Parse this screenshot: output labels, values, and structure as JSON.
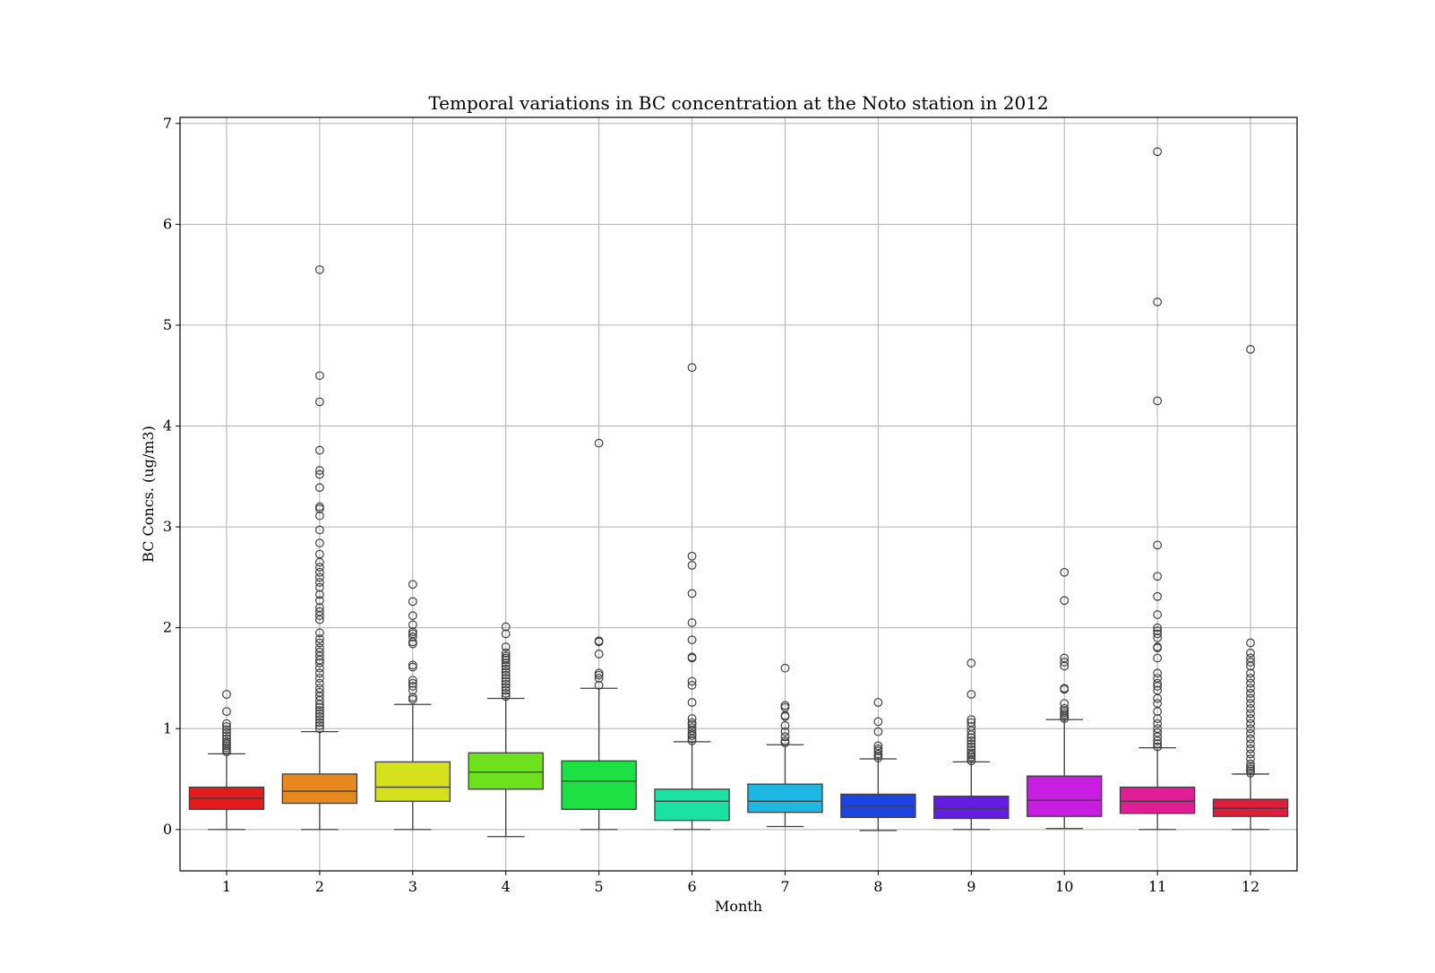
{
  "chart_data": {
    "type": "box",
    "title": "Temporal variations in BC concentration at the Noto station in 2012",
    "xlabel": "Month",
    "ylabel": "BC Concs. (ug/m3)",
    "ylim": [
      -0.41,
      7.06
    ],
    "yticks": [
      0,
      1,
      2,
      3,
      4,
      5,
      6,
      7
    ],
    "grid": true,
    "categories": [
      "1",
      "2",
      "3",
      "4",
      "5",
      "6",
      "7",
      "8",
      "9",
      "10",
      "11",
      "12"
    ],
    "colors": [
      "#e41a1c",
      "#e6891f",
      "#d4e11d",
      "#6ee11d",
      "#1de144",
      "#1de1a0",
      "#1db7e1",
      "#1d44e1",
      "#621de1",
      "#c71de1",
      "#e11d96",
      "#e11d3b"
    ],
    "boxes": [
      {
        "whisker_low": 0.0,
        "q1": 0.2,
        "median": 0.31,
        "q3": 0.42,
        "whisker_high": 0.75,
        "outliers": [
          0.77,
          0.79,
          0.81,
          0.83,
          0.85,
          0.87,
          0.9,
          0.93,
          0.96,
          0.99,
          1.02,
          1.05,
          1.17,
          1.34
        ]
      },
      {
        "whisker_low": 0.0,
        "q1": 0.26,
        "median": 0.38,
        "q3": 0.55,
        "whisker_high": 0.97,
        "outliers": [
          1.0,
          1.03,
          1.06,
          1.09,
          1.12,
          1.15,
          1.18,
          1.21,
          1.24,
          1.28,
          1.32,
          1.36,
          1.4,
          1.45,
          1.5,
          1.55,
          1.6,
          1.65,
          1.68,
          1.72,
          1.76,
          1.8,
          1.85,
          1.89,
          1.95,
          2.08,
          2.12,
          2.16,
          2.2,
          2.27,
          2.33,
          2.4,
          2.45,
          2.5,
          2.55,
          2.6,
          2.65,
          2.73,
          2.84,
          2.97,
          3.11,
          3.18,
          3.2,
          3.39,
          3.52,
          3.56,
          3.76,
          4.24,
          4.5,
          5.55
        ]
      },
      {
        "whisker_low": 0.0,
        "q1": 0.28,
        "median": 0.42,
        "q3": 0.67,
        "whisker_high": 1.24,
        "outliers": [
          1.29,
          1.31,
          1.38,
          1.42,
          1.45,
          1.48,
          1.61,
          1.63,
          1.84,
          1.86,
          1.91,
          1.94,
          1.96,
          2.03,
          2.12,
          2.26,
          2.43
        ]
      },
      {
        "whisker_low": -0.07,
        "q1": 0.4,
        "median": 0.57,
        "q3": 0.76,
        "whisker_high": 1.3,
        "outliers": [
          1.32,
          1.35,
          1.38,
          1.41,
          1.44,
          1.47,
          1.5,
          1.53,
          1.56,
          1.59,
          1.62,
          1.65,
          1.68,
          1.7,
          1.72,
          1.75,
          1.81,
          1.94,
          2.01
        ]
      },
      {
        "whisker_low": 0.0,
        "q1": 0.2,
        "median": 0.48,
        "q3": 0.68,
        "whisker_high": 1.4,
        "outliers": [
          1.43,
          1.5,
          1.53,
          1.55,
          1.74,
          1.86,
          1.87,
          3.83
        ]
      },
      {
        "whisker_low": 0.0,
        "q1": 0.09,
        "median": 0.28,
        "q3": 0.4,
        "whisker_high": 0.87,
        "outliers": [
          0.88,
          0.9,
          0.93,
          0.95,
          0.98,
          1.01,
          1.04,
          1.06,
          1.1,
          1.26,
          1.43,
          1.47,
          1.7,
          1.71,
          1.88,
          2.05,
          2.34,
          2.62,
          2.71,
          4.58
        ]
      },
      {
        "whisker_low": 0.03,
        "q1": 0.17,
        "median": 0.28,
        "q3": 0.45,
        "whisker_high": 0.84,
        "outliers": [
          0.86,
          0.88,
          0.92,
          0.97,
          1.03,
          1.12,
          1.13,
          1.21,
          1.23,
          1.6
        ]
      },
      {
        "whisker_low": -0.01,
        "q1": 0.12,
        "median": 0.23,
        "q3": 0.35,
        "whisker_high": 0.7,
        "outliers": [
          0.71,
          0.73,
          0.75,
          0.78,
          0.8,
          0.83,
          0.97,
          1.07,
          1.26
        ]
      },
      {
        "whisker_low": 0.0,
        "q1": 0.11,
        "median": 0.21,
        "q3": 0.33,
        "whisker_high": 0.67,
        "outliers": [
          0.68,
          0.7,
          0.72,
          0.74,
          0.76,
          0.79,
          0.82,
          0.85,
          0.88,
          0.91,
          0.94,
          0.98,
          1.02,
          1.06,
          1.09,
          1.34,
          1.65
        ]
      },
      {
        "whisker_low": 0.01,
        "q1": 0.13,
        "median": 0.29,
        "q3": 0.53,
        "whisker_high": 1.09,
        "outliers": [
          1.1,
          1.12,
          1.14,
          1.16,
          1.18,
          1.2,
          1.25,
          1.39,
          1.4,
          1.62,
          1.66,
          1.7,
          2.27,
          2.55
        ]
      },
      {
        "whisker_low": 0.0,
        "q1": 0.16,
        "median": 0.28,
        "q3": 0.42,
        "whisker_high": 0.81,
        "outliers": [
          0.82,
          0.85,
          0.88,
          0.92,
          0.96,
          1.0,
          1.05,
          1.1,
          1.17,
          1.25,
          1.3,
          1.38,
          1.42,
          1.45,
          1.5,
          1.55,
          1.7,
          1.8,
          1.81,
          1.9,
          1.94,
          1.97,
          2.0,
          2.13,
          2.31,
          2.51,
          2.82,
          4.25,
          5.23,
          6.72
        ]
      },
      {
        "whisker_low": 0.0,
        "q1": 0.13,
        "median": 0.21,
        "q3": 0.3,
        "whisker_high": 0.55,
        "outliers": [
          0.56,
          0.58,
          0.6,
          0.62,
          0.65,
          0.7,
          0.75,
          0.8,
          0.85,
          0.9,
          0.95,
          1.0,
          1.05,
          1.1,
          1.15,
          1.2,
          1.25,
          1.3,
          1.35,
          1.4,
          1.45,
          1.5,
          1.55,
          1.62,
          1.66,
          1.7,
          1.75,
          1.85,
          4.76
        ]
      }
    ]
  }
}
